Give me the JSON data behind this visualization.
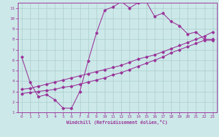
{
  "xlabel": "Windchill (Refroidissement éolien,°C)",
  "xlim": [
    -0.5,
    23.5
  ],
  "ylim": [
    1,
    11.5
  ],
  "xtick_labels": [
    "0",
    "1",
    "2",
    "3",
    "4",
    "5",
    "6",
    "7",
    "8",
    "9",
    "10",
    "11",
    "12",
    "13",
    "14",
    "15",
    "16",
    "17",
    "18",
    "19",
    "20",
    "21",
    "22",
    "23"
  ],
  "xtick_vals": [
    0,
    1,
    2,
    3,
    4,
    5,
    6,
    7,
    8,
    9,
    10,
    11,
    12,
    13,
    14,
    15,
    16,
    17,
    18,
    19,
    20,
    21,
    22,
    23
  ],
  "ytick_vals": [
    1,
    2,
    3,
    4,
    5,
    6,
    7,
    8,
    9,
    10,
    11
  ],
  "bg_color": "#cce8e8",
  "grid_color": "#aacccc",
  "line_color": "#993399",
  "line1_x": [
    0,
    1,
    2,
    3,
    4,
    5,
    6,
    7,
    8,
    9,
    10,
    11,
    12,
    13,
    14,
    15,
    16,
    17,
    18,
    19,
    20,
    21,
    22,
    23
  ],
  "line1_y": [
    6.3,
    3.9,
    2.5,
    2.7,
    2.2,
    1.4,
    1.4,
    3.0,
    5.9,
    8.6,
    10.8,
    11.1,
    11.6,
    11.0,
    11.5,
    11.6,
    10.2,
    10.5,
    9.7,
    9.3,
    8.5,
    8.7,
    8.0,
    8.0
  ],
  "line2_x": [
    0,
    1,
    2,
    3,
    4,
    5,
    6,
    7,
    8,
    9,
    10,
    11,
    12,
    13,
    14,
    15,
    16,
    17,
    18,
    19,
    20,
    21,
    22,
    23
  ],
  "line2_y": [
    3.2,
    3.3,
    3.5,
    3.7,
    3.9,
    4.1,
    4.3,
    4.5,
    4.7,
    4.9,
    5.1,
    5.3,
    5.5,
    5.8,
    6.1,
    6.3,
    6.5,
    6.8,
    7.1,
    7.4,
    7.7,
    8.0,
    8.3,
    8.7
  ],
  "line3_x": [
    0,
    1,
    2,
    3,
    4,
    5,
    6,
    7,
    8,
    9,
    10,
    11,
    12,
    13,
    14,
    15,
    16,
    17,
    18,
    19,
    20,
    21,
    22,
    23
  ],
  "line3_y": [
    2.8,
    2.9,
    3.0,
    3.1,
    3.2,
    3.4,
    3.5,
    3.7,
    3.9,
    4.1,
    4.3,
    4.6,
    4.8,
    5.1,
    5.4,
    5.7,
    6.0,
    6.3,
    6.7,
    7.0,
    7.3,
    7.6,
    7.9,
    7.9
  ]
}
